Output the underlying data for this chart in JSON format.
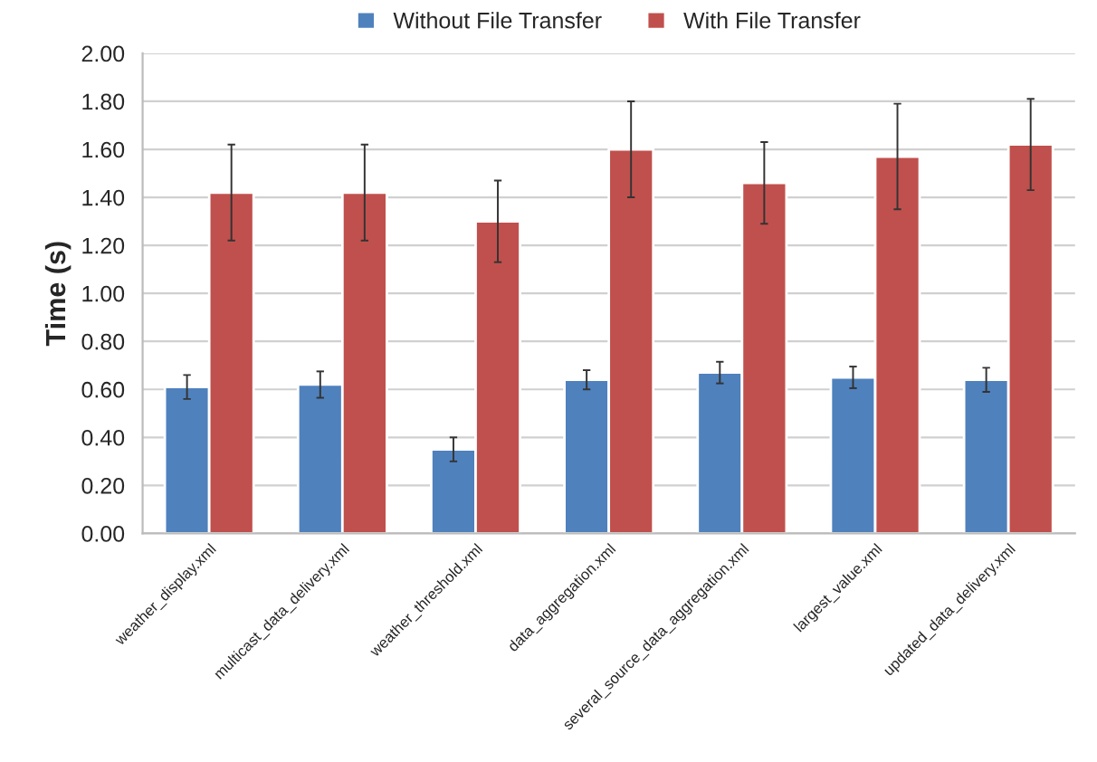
{
  "chart_data": {
    "type": "bar",
    "ylabel": "Time (s)",
    "categories": [
      "weather_display.xml",
      "multicast_data_delivery.xml",
      "weather_threshold.xml",
      "data_aggregation.xml",
      "several_source_data_aggregation.xml",
      "largest_value.xml",
      "updated_data_delivery.xml"
    ],
    "series": [
      {
        "name": "Without File Transfer",
        "color": "#4f81bd",
        "values": [
          0.61,
          0.62,
          0.35,
          0.64,
          0.67,
          0.65,
          0.64
        ],
        "errors": [
          0.05,
          0.055,
          0.05,
          0.04,
          0.045,
          0.045,
          0.05
        ]
      },
      {
        "name": "With File Transfer",
        "color": "#c0504d",
        "values": [
          1.42,
          1.42,
          1.3,
          1.6,
          1.46,
          1.57,
          1.62
        ],
        "errors": [
          0.2,
          0.2,
          0.17,
          0.2,
          0.17,
          0.22,
          0.19
        ]
      }
    ],
    "ylim": [
      0,
      2
    ],
    "yticks": [
      {
        "value": 0,
        "label": "0.00"
      },
      {
        "value": 0.2,
        "label": "0.20"
      },
      {
        "value": 0.4,
        "label": "0.40"
      },
      {
        "value": 0.6,
        "label": "0.60"
      },
      {
        "value": 0.8,
        "label": "0.80"
      },
      {
        "value": 1.0,
        "label": "1.00"
      },
      {
        "value": 1.2,
        "label": "1.20"
      },
      {
        "value": 1.4,
        "label": "1.40"
      },
      {
        "value": 1.6,
        "label": "1.60"
      },
      {
        "value": 1.8,
        "label": "1.80"
      },
      {
        "value": 2.0,
        "label": "2.00"
      }
    ],
    "grid": "y",
    "legend": "top"
  }
}
